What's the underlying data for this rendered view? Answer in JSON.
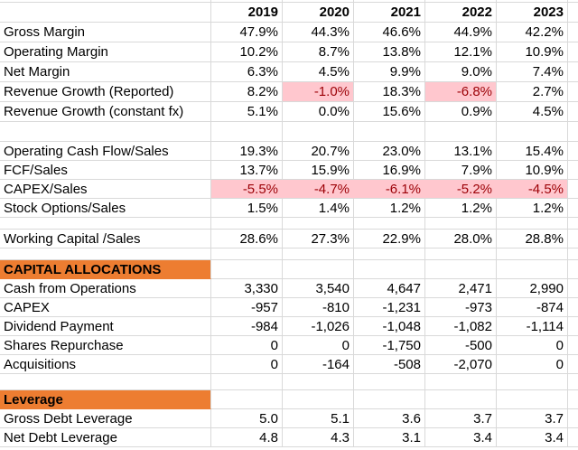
{
  "columns": [
    "2019",
    "2020",
    "2021",
    "2022",
    "2023"
  ],
  "colors": {
    "section_bg": "#ed7d31",
    "highlight_bg": "#ffc7ce",
    "highlight_text": "#9c0006",
    "gridline": "#d9d9d9"
  },
  "rows": [
    {
      "type": "year-header"
    },
    {
      "type": "data",
      "label": "Gross Margin",
      "values": [
        "47.9%",
        "44.3%",
        "46.6%",
        "44.9%",
        "42.2%"
      ]
    },
    {
      "type": "data",
      "label": "Operating Margin",
      "values": [
        "10.2%",
        "8.7%",
        "13.8%",
        "12.1%",
        "10.9%"
      ]
    },
    {
      "type": "data",
      "label": "Net Margin",
      "values": [
        "6.3%",
        "4.5%",
        "9.9%",
        "9.0%",
        "7.4%"
      ]
    },
    {
      "type": "data",
      "label": "Revenue Growth (Reported)",
      "values": [
        "8.2%",
        "-1.0%",
        "18.3%",
        "-6.8%",
        "2.7%"
      ],
      "highlight": [
        1,
        3
      ]
    },
    {
      "type": "data",
      "label": "Revenue Growth (constant fx)",
      "values": [
        "5.1%",
        "0.0%",
        "15.6%",
        "0.9%",
        "4.5%"
      ]
    },
    {
      "type": "blank",
      "height": 22
    },
    {
      "type": "data",
      "label": "Operating Cash Flow/Sales",
      "values": [
        "19.3%",
        "20.7%",
        "23.0%",
        "13.1%",
        "15.4%"
      ]
    },
    {
      "type": "data",
      "label": "FCF/Sales",
      "values": [
        "13.7%",
        "15.9%",
        "16.9%",
        "7.9%",
        "10.9%"
      ]
    },
    {
      "type": "data",
      "label": "CAPEX/Sales",
      "values": [
        "-5.5%",
        "-4.7%",
        "-6.1%",
        "-5.2%",
        "-4.5%"
      ],
      "highlight": [
        0,
        1,
        2,
        3,
        4
      ]
    },
    {
      "type": "data",
      "label": "Stock Options/Sales",
      "values": [
        "1.5%",
        "1.4%",
        "1.2%",
        "1.2%",
        "1.2%"
      ]
    },
    {
      "type": "blank",
      "height": 13
    },
    {
      "type": "data",
      "label": "Working Capital /Sales",
      "values": [
        "28.6%",
        "27.3%",
        "22.9%",
        "28.0%",
        "28.8%"
      ]
    },
    {
      "type": "blank",
      "height": 13
    },
    {
      "type": "section",
      "label": "CAPITAL ALLOCATIONS"
    },
    {
      "type": "data",
      "label": "Cash from Operations",
      "values": [
        "3,330",
        "3,540",
        "4,647",
        "2,471",
        "2,990"
      ]
    },
    {
      "type": "data",
      "label": "CAPEX",
      "values": [
        "-957",
        "-810",
        "-1,231",
        "-973",
        "-874"
      ]
    },
    {
      "type": "data",
      "label": "Dividend Payment",
      "values": [
        "-984",
        "-1,026",
        "-1,048",
        "-1,082",
        "-1,114"
      ]
    },
    {
      "type": "data",
      "label": "Shares Repurchase",
      "values": [
        "0",
        "0",
        "-1,750",
        "-500",
        "0"
      ]
    },
    {
      "type": "data",
      "label": "Acquisitions",
      "values": [
        "0",
        "-164",
        "-508",
        "-2,070",
        "0"
      ]
    },
    {
      "type": "blank",
      "height": 18
    },
    {
      "type": "section",
      "label": "Leverage"
    },
    {
      "type": "data",
      "label": "Gross Debt Leverage",
      "values": [
        "5.0",
        "5.1",
        "3.6",
        "3.7",
        "3.7"
      ]
    },
    {
      "type": "data",
      "label": "Net Debt Leverage",
      "values": [
        "4.8",
        "4.3",
        "3.1",
        "3.4",
        "3.4"
      ]
    }
  ]
}
